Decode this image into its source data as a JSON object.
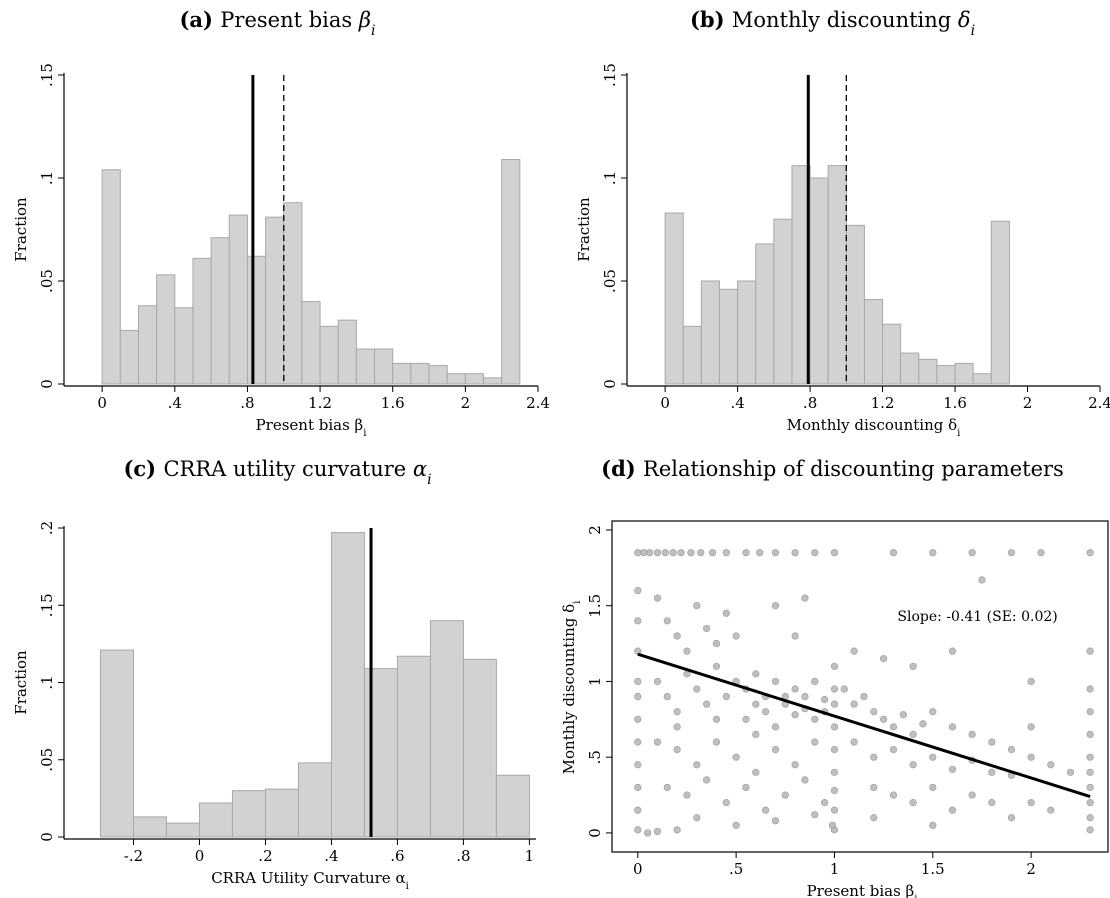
{
  "chart_data": [
    {
      "type": "bar",
      "title_prefix": "(a)",
      "title_text": "Present bias",
      "title_symbol": "β",
      "title_sub": "i",
      "xlabel_text": "Present bias",
      "xlabel_symbol": "β",
      "xlabel_sub": "i",
      "ylabel": "Fraction",
      "xlim": [
        -0.1,
        2.4
      ],
      "ylim": [
        0,
        0.15
      ],
      "xticks": [
        0,
        0.4,
        0.8,
        1.2,
        1.6,
        2,
        2.4
      ],
      "xtick_labels": [
        "0",
        ".4",
        ".8",
        "1.2",
        "1.6",
        "2",
        "2.4"
      ],
      "yticks": [
        0,
        0.05,
        0.1,
        0.15
      ],
      "ytick_labels": [
        "0",
        ".05",
        ".1",
        ".15"
      ],
      "bin_edges": [
        0,
        0.1,
        0.2,
        0.3,
        0.4,
        0.5,
        0.6,
        0.7,
        0.8,
        0.9,
        1.0,
        1.1,
        1.2,
        1.3,
        1.4,
        1.5,
        1.6,
        1.7,
        1.8,
        1.9,
        2.0,
        2.1,
        2.2,
        2.3
      ],
      "values": [
        0.104,
        0.026,
        0.038,
        0.053,
        0.037,
        0.061,
        0.071,
        0.082,
        0.062,
        0.081,
        0.088,
        0.04,
        0.028,
        0.031,
        0.017,
        0.017,
        0.01,
        0.01,
        0.009,
        0.005,
        0.005,
        0.003,
        0.109
      ],
      "vlines": [
        {
          "x": 0.83,
          "style": "solid"
        },
        {
          "x": 1.0,
          "style": "dashed"
        }
      ]
    },
    {
      "type": "bar",
      "title_prefix": "(b)",
      "title_text": "Monthly discounting",
      "title_symbol": "δ",
      "title_sub": "i",
      "xlabel_text": "Monthly discounting",
      "xlabel_symbol": "δ",
      "xlabel_sub": "i",
      "ylabel": "Fraction",
      "xlim": [
        -0.1,
        2.4
      ],
      "ylim": [
        0,
        0.15
      ],
      "xticks": [
        0,
        0.4,
        0.8,
        1.2,
        1.6,
        2,
        2.4
      ],
      "xtick_labels": [
        "0",
        ".4",
        ".8",
        "1.2",
        "1.6",
        "2",
        "2.4"
      ],
      "yticks": [
        0,
        0.05,
        0.1,
        0.15
      ],
      "ytick_labels": [
        "0",
        ".05",
        ".1",
        ".15"
      ],
      "bin_edges": [
        0,
        0.1,
        0.2,
        0.3,
        0.4,
        0.5,
        0.6,
        0.7,
        0.8,
        0.9,
        1.0,
        1.1,
        1.2,
        1.3,
        1.4,
        1.5,
        1.6,
        1.7,
        1.8,
        1.9
      ],
      "values": [
        0.083,
        0.028,
        0.05,
        0.046,
        0.05,
        0.068,
        0.08,
        0.106,
        0.1,
        0.106,
        0.077,
        0.041,
        0.029,
        0.015,
        0.012,
        0.009,
        0.01,
        0.005,
        0.079
      ],
      "vlines": [
        {
          "x": 0.79,
          "style": "solid"
        },
        {
          "x": 1.0,
          "style": "dashed"
        }
      ]
    },
    {
      "type": "bar",
      "title_prefix": "(c)",
      "title_text": "CRRA utility curvature",
      "title_symbol": "α",
      "title_sub": "i",
      "xlabel_text": "CRRA Utility Curvature",
      "xlabel_symbol": "α",
      "xlabel_sub": "i",
      "ylabel": "Fraction",
      "xlim": [
        -0.35,
        1.02
      ],
      "ylim": [
        0,
        0.2
      ],
      "xticks": [
        -0.2,
        0,
        0.2,
        0.4,
        0.6,
        0.8,
        1
      ],
      "xtick_labels": [
        "-.2",
        "0",
        ".2",
        ".4",
        ".6",
        ".8",
        "1"
      ],
      "yticks": [
        0,
        0.05,
        0.1,
        0.15,
        0.2
      ],
      "ytick_labels": [
        "0",
        ".05",
        ".1",
        ".15",
        ".2"
      ],
      "bin_edges": [
        -0.3,
        -0.2,
        -0.1,
        0,
        0.1,
        0.2,
        0.3,
        0.4,
        0.5,
        0.6,
        0.7,
        0.8,
        0.9,
        1.0
      ],
      "values": [
        0.121,
        0.013,
        0.009,
        0.022,
        0.03,
        0.031,
        0.048,
        0.197,
        0.109,
        0.117,
        0.14,
        0.115,
        0.04
      ],
      "vlines": [
        {
          "x": 0.52,
          "style": "solid"
        }
      ]
    },
    {
      "type": "scatter",
      "title_prefix": "(d)",
      "title_text": "Relationship of discounting parameters",
      "xlabel_text": "Present bias",
      "xlabel_symbol": "β",
      "xlabel_sub": "i",
      "ylabel_text": "Monthly discounting",
      "ylabel_symbol": "δ",
      "ylabel_sub": "i",
      "xlim": [
        -0.06,
        2.34
      ],
      "ylim": [
        -0.06,
        1.98
      ],
      "xticks": [
        0,
        0.5,
        1,
        1.5,
        2
      ],
      "xtick_labels": [
        "0",
        ".5",
        "1",
        "1.5",
        "2"
      ],
      "yticks": [
        0,
        0.5,
        1,
        1.5,
        2
      ],
      "ytick_labels": [
        "0",
        ".5",
        "1",
        "1.5",
        "2"
      ],
      "annotation": "Slope: -0.41 (SE: 0.02)",
      "fit_line": {
        "x": [
          0,
          2.3
        ],
        "y": [
          1.18,
          0.24
        ]
      },
      "points": [
        [
          0,
          1.85
        ],
        [
          0.03,
          1.85
        ],
        [
          0.06,
          1.85
        ],
        [
          0.1,
          1.85
        ],
        [
          0.14,
          1.85
        ],
        [
          0.18,
          1.85
        ],
        [
          0.22,
          1.85
        ],
        [
          0.27,
          1.85
        ],
        [
          0.32,
          1.85
        ],
        [
          0.38,
          1.85
        ],
        [
          0.45,
          1.85
        ],
        [
          0.55,
          1.85
        ],
        [
          0.62,
          1.85
        ],
        [
          0.7,
          1.85
        ],
        [
          0.8,
          1.85
        ],
        [
          0.9,
          1.85
        ],
        [
          1.0,
          1.85
        ],
        [
          1.3,
          1.85
        ],
        [
          1.5,
          1.85
        ],
        [
          1.7,
          1.85
        ],
        [
          1.9,
          1.85
        ],
        [
          2.05,
          1.85
        ],
        [
          2.3,
          1.85
        ],
        [
          0,
          1.6
        ],
        [
          0,
          1.4
        ],
        [
          0,
          1.2
        ],
        [
          0,
          1.0
        ],
        [
          0,
          0.9
        ],
        [
          0,
          0.75
        ],
        [
          0,
          0.6
        ],
        [
          0,
          0.45
        ],
        [
          0,
          0.3
        ],
        [
          0,
          0.15
        ],
        [
          0,
          0.02
        ],
        [
          0.05,
          0.0
        ],
        [
          0.1,
          0.01
        ],
        [
          0.2,
          0.02
        ],
        [
          1.0,
          1.1
        ],
        [
          1.0,
          0.95
        ],
        [
          1.0,
          0.85
        ],
        [
          1.0,
          0.7
        ],
        [
          1.0,
          0.55
        ],
        [
          1.0,
          0.4
        ],
        [
          1.0,
          0.28
        ],
        [
          1.0,
          0.15
        ],
        [
          1.0,
          0.02
        ],
        [
          0.99,
          0.05
        ],
        [
          2.3,
          1.2
        ],
        [
          2.3,
          0.95
        ],
        [
          2.3,
          0.8
        ],
        [
          2.3,
          0.65
        ],
        [
          2.3,
          0.5
        ],
        [
          2.3,
          0.4
        ],
        [
          2.3,
          0.3
        ],
        [
          2.3,
          0.2
        ],
        [
          2.3,
          0.1
        ],
        [
          2.3,
          0.02
        ],
        [
          0.1,
          1.55
        ],
        [
          0.15,
          1.4
        ],
        [
          0.2,
          1.3
        ],
        [
          0.25,
          1.2
        ],
        [
          0.3,
          1.5
        ],
        [
          0.35,
          1.35
        ],
        [
          0.4,
          1.25
        ],
        [
          0.45,
          1.45
        ],
        [
          0.5,
          1.3
        ],
        [
          0.1,
          1.0
        ],
        [
          0.15,
          0.9
        ],
        [
          0.2,
          0.8
        ],
        [
          0.25,
          1.05
        ],
        [
          0.3,
          0.95
        ],
        [
          0.35,
          0.85
        ],
        [
          0.4,
          1.1
        ],
        [
          0.45,
          0.9
        ],
        [
          0.5,
          1.0
        ],
        [
          0.55,
          0.95
        ],
        [
          0.6,
          1.05
        ],
        [
          0.65,
          0.9
        ],
        [
          0.7,
          1.0
        ],
        [
          0.75,
          0.85
        ],
        [
          0.8,
          0.95
        ],
        [
          0.85,
          0.9
        ],
        [
          0.9,
          1.0
        ],
        [
          0.95,
          0.88
        ],
        [
          0.55,
          0.75
        ],
        [
          0.6,
          0.85
        ],
        [
          0.65,
          0.8
        ],
        [
          0.7,
          0.7
        ],
        [
          0.75,
          0.9
        ],
        [
          0.8,
          0.78
        ],
        [
          0.85,
          0.82
        ],
        [
          0.9,
          0.75
        ],
        [
          0.95,
          0.8
        ],
        [
          0.1,
          0.6
        ],
        [
          0.2,
          0.55
        ],
        [
          0.3,
          0.45
        ],
        [
          0.4,
          0.6
        ],
        [
          0.5,
          0.5
        ],
        [
          0.6,
          0.4
        ],
        [
          0.7,
          0.55
        ],
        [
          0.8,
          0.45
        ],
        [
          0.9,
          0.6
        ],
        [
          0.15,
          0.3
        ],
        [
          0.25,
          0.25
        ],
        [
          0.35,
          0.35
        ],
        [
          0.45,
          0.2
        ],
        [
          0.55,
          0.3
        ],
        [
          0.65,
          0.15
        ],
        [
          0.75,
          0.25
        ],
        [
          0.85,
          0.35
        ],
        [
          0.95,
          0.2
        ],
        [
          1.05,
          0.95
        ],
        [
          1.1,
          0.85
        ],
        [
          1.15,
          0.9
        ],
        [
          1.2,
          0.8
        ],
        [
          1.25,
          0.75
        ],
        [
          1.3,
          0.7
        ],
        [
          1.35,
          0.78
        ],
        [
          1.4,
          0.65
        ],
        [
          1.45,
          0.72
        ],
        [
          1.1,
          0.6
        ],
        [
          1.2,
          0.5
        ],
        [
          1.3,
          0.55
        ],
        [
          1.4,
          0.45
        ],
        [
          1.5,
          0.5
        ],
        [
          1.6,
          0.42
        ],
        [
          1.7,
          0.48
        ],
        [
          1.8,
          0.4
        ],
        [
          1.9,
          0.38
        ],
        [
          1.5,
          0.8
        ],
        [
          1.6,
          0.7
        ],
        [
          1.7,
          0.65
        ],
        [
          1.8,
          0.6
        ],
        [
          1.9,
          0.55
        ],
        [
          2.0,
          0.5
        ],
        [
          2.1,
          0.45
        ],
        [
          2.2,
          0.4
        ],
        [
          2.0,
          0.7
        ],
        [
          1.2,
          0.3
        ],
        [
          1.3,
          0.25
        ],
        [
          1.4,
          0.2
        ],
        [
          1.5,
          0.3
        ],
        [
          1.6,
          0.15
        ],
        [
          1.7,
          0.25
        ],
        [
          1.8,
          0.2
        ],
        [
          1.9,
          0.1
        ],
        [
          2.0,
          0.2
        ],
        [
          2.1,
          0.15
        ],
        [
          1.75,
          1.67
        ],
        [
          1.6,
          1.2
        ],
        [
          1.4,
          1.1
        ],
        [
          1.25,
          1.15
        ],
        [
          2.0,
          1.0
        ],
        [
          1.1,
          1.2
        ],
        [
          0.8,
          1.3
        ],
        [
          0.7,
          1.5
        ],
        [
          0.85,
          1.55
        ],
        [
          0.3,
          0.1
        ],
        [
          0.5,
          0.05
        ],
        [
          0.7,
          0.08
        ],
        [
          0.9,
          0.12
        ],
        [
          1.5,
          0.05
        ],
        [
          1.2,
          0.1
        ],
        [
          0.6,
          0.65
        ],
        [
          0.4,
          0.75
        ],
        [
          0.2,
          0.7
        ]
      ]
    }
  ]
}
